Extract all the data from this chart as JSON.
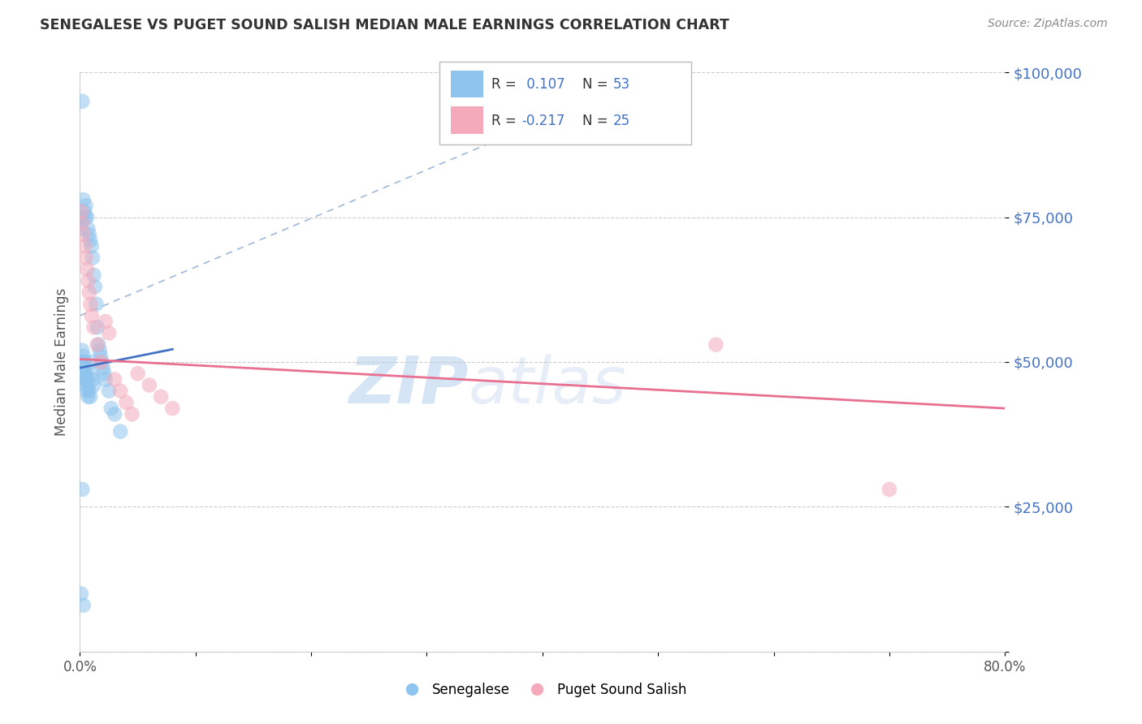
{
  "title": "SENEGALESE VS PUGET SOUND SALISH MEDIAN MALE EARNINGS CORRELATION CHART",
  "source": "Source: ZipAtlas.com",
  "ylabel": "Median Male Earnings",
  "xlim": [
    0,
    0.8
  ],
  "ylim": [
    0,
    100000
  ],
  "R_blue": 0.107,
  "N_blue": 53,
  "R_pink": -0.217,
  "N_pink": 25,
  "blue_color": "#8EC4ED",
  "pink_color": "#F4AABB",
  "blue_line_color": "#4472C4",
  "pink_line_color": "#E87090",
  "ref_line_color": "#A0B8D8",
  "watermark_color": "#D5E5F5",
  "background_color": "#FFFFFF",
  "blue_x": [
    0.001,
    0.001,
    0.001,
    0.002,
    0.002,
    0.002,
    0.002,
    0.003,
    0.003,
    0.003,
    0.003,
    0.004,
    0.004,
    0.004,
    0.004,
    0.005,
    0.005,
    0.005,
    0.005,
    0.006,
    0.006,
    0.006,
    0.007,
    0.007,
    0.007,
    0.008,
    0.008,
    0.009,
    0.009,
    0.01,
    0.01,
    0.01,
    0.011,
    0.011,
    0.012,
    0.012,
    0.013,
    0.014,
    0.015,
    0.016,
    0.017,
    0.018,
    0.019,
    0.02,
    0.021,
    0.022,
    0.025,
    0.027,
    0.03,
    0.035,
    0.001,
    0.002,
    0.003
  ],
  "blue_y": [
    75000,
    74000,
    73000,
    95000,
    75000,
    52000,
    50000,
    78000,
    51000,
    49000,
    48000,
    76000,
    50000,
    48000,
    47000,
    77000,
    75000,
    48000,
    46000,
    75000,
    47000,
    45000,
    73000,
    46000,
    44000,
    72000,
    45000,
    71000,
    44000,
    70000,
    50000,
    48000,
    68000,
    47000,
    65000,
    46000,
    63000,
    60000,
    56000,
    53000,
    52000,
    51000,
    50000,
    49000,
    48000,
    47000,
    45000,
    42000,
    41000,
    38000,
    10000,
    28000,
    8000
  ],
  "pink_x": [
    0.001,
    0.002,
    0.003,
    0.004,
    0.005,
    0.006,
    0.007,
    0.008,
    0.009,
    0.01,
    0.012,
    0.015,
    0.018,
    0.022,
    0.025,
    0.03,
    0.035,
    0.04,
    0.045,
    0.05,
    0.06,
    0.07,
    0.08,
    0.55,
    0.7
  ],
  "pink_y": [
    76000,
    74000,
    72000,
    70000,
    68000,
    66000,
    64000,
    62000,
    60000,
    58000,
    56000,
    53000,
    50000,
    57000,
    55000,
    47000,
    45000,
    43000,
    41000,
    48000,
    46000,
    44000,
    42000,
    53000,
    28000
  ],
  "pink_line_x0": 0.0,
  "pink_line_y0": 50500,
  "pink_line_x1": 0.8,
  "pink_line_y1": 42000,
  "blue_line_x0": 0.0,
  "blue_line_y0": 49000,
  "blue_line_x1": 0.05,
  "blue_line_y1": 51000,
  "ref_line_x0": 0.0,
  "ref_line_y0": 58000,
  "ref_line_x1": 0.5,
  "ref_line_y1": 100000
}
